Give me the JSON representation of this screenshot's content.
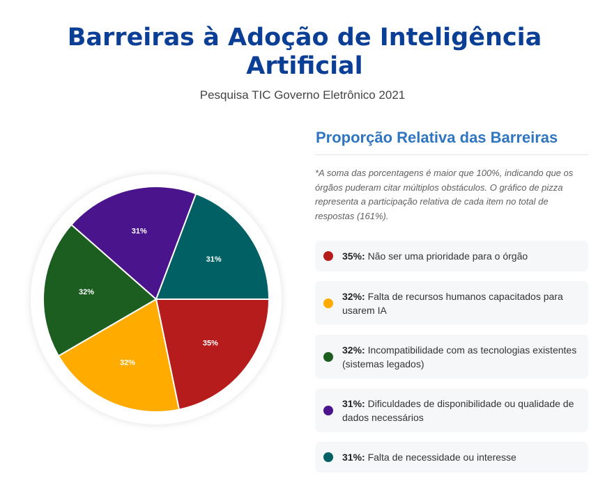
{
  "header": {
    "title": "Barreiras à Adoção de Inteligência Artificial",
    "subtitle": "Pesquisa TIC Governo Eletrônico 2021"
  },
  "panel": {
    "title": "Proporção Relativa das Barreiras",
    "note": "*A soma das porcentagens é maior que 100%, indicando que os órgãos puderam citar múltiplos obstáculos. O gráfico de pizza representa a participação relativa de cada item no total de respostas (161%)."
  },
  "chart_data": {
    "type": "pie",
    "categories": [
      "Não ser uma prioridade para o órgão",
      "Falta de recursos humanos capacitados para usarem IA",
      "Incompatibilidade com as tecnologias existentes (sistemas legados)",
      "Dificuldades de disponibilidade ou qualidade de dados necessários",
      "Falta de necessidade ou interesse"
    ],
    "values": [
      35,
      32,
      32,
      31,
      31
    ],
    "labels": [
      "35%",
      "32%",
      "32%",
      "31%",
      "31%"
    ],
    "legend_values": [
      "35%:",
      "32%:",
      "32%:",
      "31%:",
      "31%:"
    ],
    "colors": [
      "#b71c1c",
      "#ffab00",
      "#1b5e20",
      "#4a148c",
      "#006064"
    ],
    "start": "3 o'clock, clockwise",
    "legend_placement": "right"
  }
}
